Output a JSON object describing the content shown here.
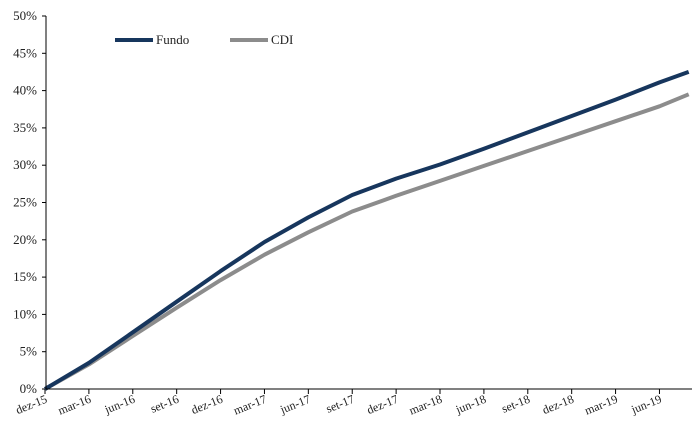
{
  "chart_data": {
    "type": "line",
    "title": "",
    "xlabel": "",
    "ylabel": "",
    "x_tick_labels": [
      "dez-15",
      "mar-16",
      "jun-16",
      "set-16",
      "dez-16",
      "mar-17",
      "jun-17",
      "set-17",
      "dez-17",
      "mar-18",
      "jun-18",
      "set-18",
      "dez-18",
      "mar-19",
      "jun-19"
    ],
    "y_tick_labels": [
      "0%",
      "5%",
      "10%",
      "15%",
      "20%",
      "25%",
      "30%",
      "35%",
      "40%",
      "45%",
      "50%"
    ],
    "ylim": [
      0,
      50
    ],
    "y_unit": "%",
    "x_range": [
      "2015-12",
      "2019-08"
    ],
    "grid": false,
    "legend_position": "top-left",
    "x": [
      "2015-12",
      "2016-03",
      "2016-06",
      "2016-09",
      "2016-12",
      "2017-03",
      "2017-06",
      "2017-09",
      "2017-12",
      "2018-03",
      "2018-06",
      "2018-09",
      "2018-12",
      "2019-03",
      "2019-06",
      "2019-08"
    ],
    "series": [
      {
        "name": "Fundo",
        "color": "#17365d",
        "values": [
          0,
          3.5,
          7.6,
          11.7,
          15.8,
          19.7,
          23.0,
          26.0,
          28.2,
          30.1,
          32.2,
          34.4,
          36.6,
          38.8,
          41.1,
          42.5
        ]
      },
      {
        "name": "CDI",
        "color": "#8c8c8c",
        "values": [
          0,
          3.3,
          7.1,
          10.9,
          14.6,
          18.0,
          21.0,
          23.8,
          25.9,
          27.9,
          29.9,
          31.9,
          33.9,
          35.9,
          37.9,
          39.5
        ]
      }
    ]
  }
}
